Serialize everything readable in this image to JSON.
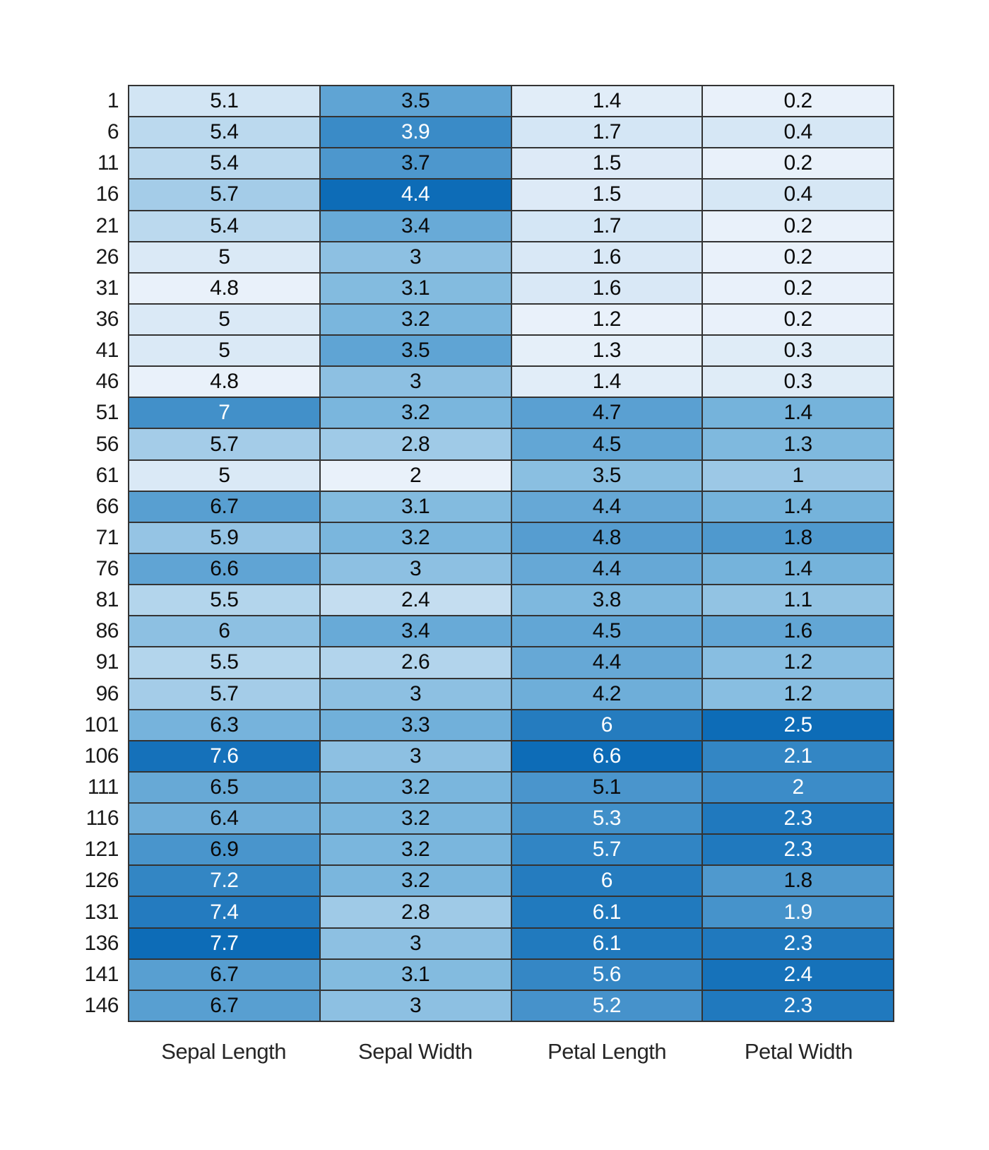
{
  "chart_data": {
    "type": "heatmap",
    "title": "",
    "rows": [
      "1",
      "6",
      "11",
      "16",
      "21",
      "26",
      "31",
      "36",
      "41",
      "46",
      "51",
      "56",
      "61",
      "66",
      "71",
      "76",
      "81",
      "86",
      "91",
      "96",
      "101",
      "106",
      "111",
      "116",
      "121",
      "126",
      "131",
      "136",
      "141",
      "146"
    ],
    "columns": [
      "Sepal Length",
      "Sepal Width",
      "Petal Length",
      "Petal Width"
    ],
    "values": [
      [
        5.1,
        3.5,
        1.4,
        0.2
      ],
      [
        5.4,
        3.9,
        1.7,
        0.4
      ],
      [
        5.4,
        3.7,
        1.5,
        0.2
      ],
      [
        5.7,
        4.4,
        1.5,
        0.4
      ],
      [
        5.4,
        3.4,
        1.7,
        0.2
      ],
      [
        5.0,
        3.0,
        1.6,
        0.2
      ],
      [
        4.8,
        3.1,
        1.6,
        0.2
      ],
      [
        5.0,
        3.2,
        1.2,
        0.2
      ],
      [
        5.0,
        3.5,
        1.3,
        0.3
      ],
      [
        4.8,
        3.0,
        1.4,
        0.3
      ],
      [
        7.0,
        3.2,
        4.7,
        1.4
      ],
      [
        5.7,
        2.8,
        4.5,
        1.3
      ],
      [
        5.0,
        2.0,
        3.5,
        1.0
      ],
      [
        6.7,
        3.1,
        4.4,
        1.4
      ],
      [
        5.9,
        3.2,
        4.8,
        1.8
      ],
      [
        6.6,
        3.0,
        4.4,
        1.4
      ],
      [
        5.5,
        2.4,
        3.8,
        1.1
      ],
      [
        6.0,
        3.4,
        4.5,
        1.6
      ],
      [
        5.5,
        2.6,
        4.4,
        1.2
      ],
      [
        5.7,
        3.0,
        4.2,
        1.2
      ],
      [
        6.3,
        3.3,
        6.0,
        2.5
      ],
      [
        7.6,
        3.0,
        6.6,
        2.1
      ],
      [
        6.5,
        3.2,
        5.1,
        2.0
      ],
      [
        6.4,
        3.2,
        5.3,
        2.3
      ],
      [
        6.9,
        3.2,
        5.7,
        2.3
      ],
      [
        7.2,
        3.2,
        6.0,
        1.8
      ],
      [
        7.4,
        2.8,
        6.1,
        1.9
      ],
      [
        7.7,
        3.0,
        6.1,
        2.3
      ],
      [
        6.7,
        3.1,
        5.6,
        2.4
      ],
      [
        6.7,
        3.0,
        5.2,
        2.3
      ]
    ],
    "color_scale": {
      "mode": "per-column-min-max",
      "stops": [
        "#e9f1fa",
        "#7ab6dd",
        "#0d6cb7"
      ],
      "white_text_threshold": 0.73
    },
    "grid_line_color": "#333333",
    "dark_text_color": "#0a0a0a",
    "light_text_color": "#ffffff",
    "legend": "none",
    "xlabel": "",
    "ylabel": ""
  }
}
